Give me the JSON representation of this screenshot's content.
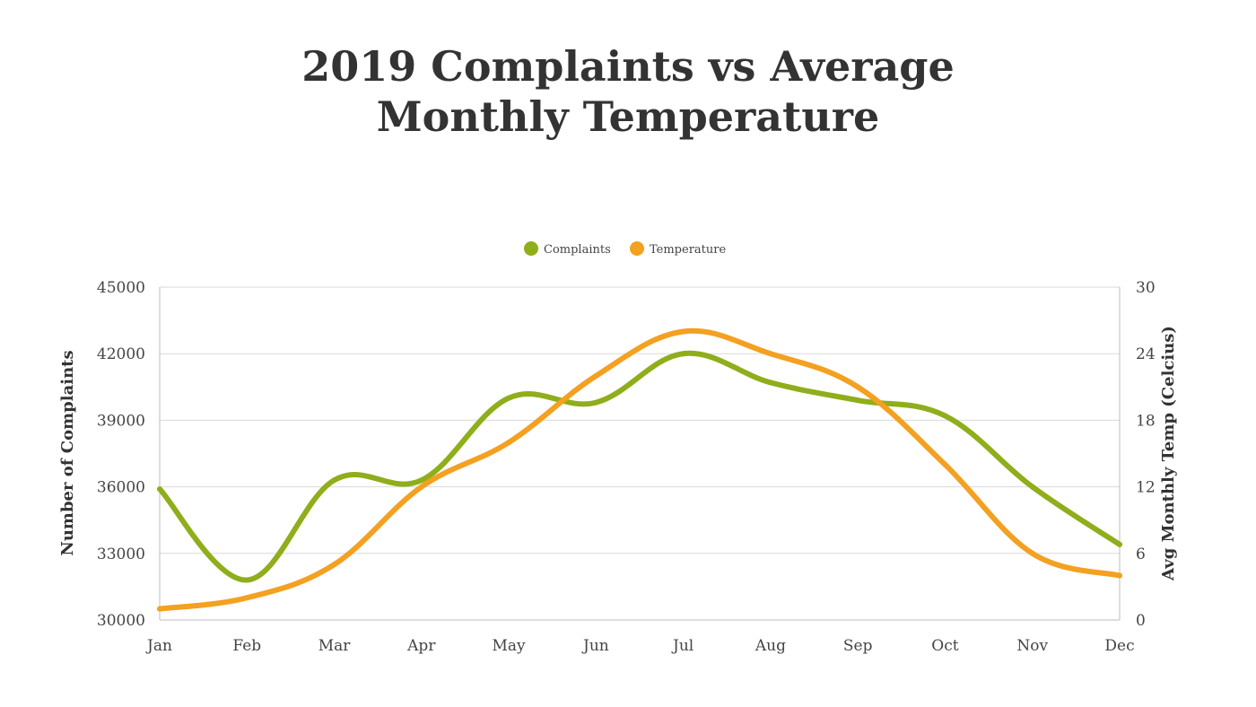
{
  "chart_data": {
    "type": "line",
    "title_lines": [
      "2019 Complaints vs Average",
      "Monthly Temperature"
    ],
    "categories": [
      "Jan",
      "Feb",
      "Mar",
      "Apr",
      "May",
      "Jun",
      "Jul",
      "Aug",
      "Sep",
      "Oct",
      "Nov",
      "Dec"
    ],
    "series": [
      {
        "name": "Complaints",
        "axis": "left",
        "color": "#8fae1b",
        "values": [
          35900,
          31800,
          36300,
          36300,
          40000,
          39800,
          42000,
          40700,
          39900,
          39200,
          36000,
          33400
        ]
      },
      {
        "name": "Temperature",
        "axis": "right",
        "color": "#f4a020",
        "values": [
          1,
          2,
          5,
          12,
          16,
          22,
          26,
          24,
          21,
          14,
          6,
          4
        ]
      }
    ],
    "ylabel": "Number of Complaints",
    "ylim": [
      30000,
      45000
    ],
    "yticks": [
      "45000",
      "42000",
      "39000",
      "36000",
      "33000",
      "30000"
    ],
    "y2label": "Avg Monthly Temp (Celcius)",
    "y2lim": [
      0,
      30
    ],
    "y2ticks": [
      "30",
      "24",
      "18",
      "12",
      "6",
      "0"
    ],
    "grid": true,
    "legend_position": "top-center"
  }
}
